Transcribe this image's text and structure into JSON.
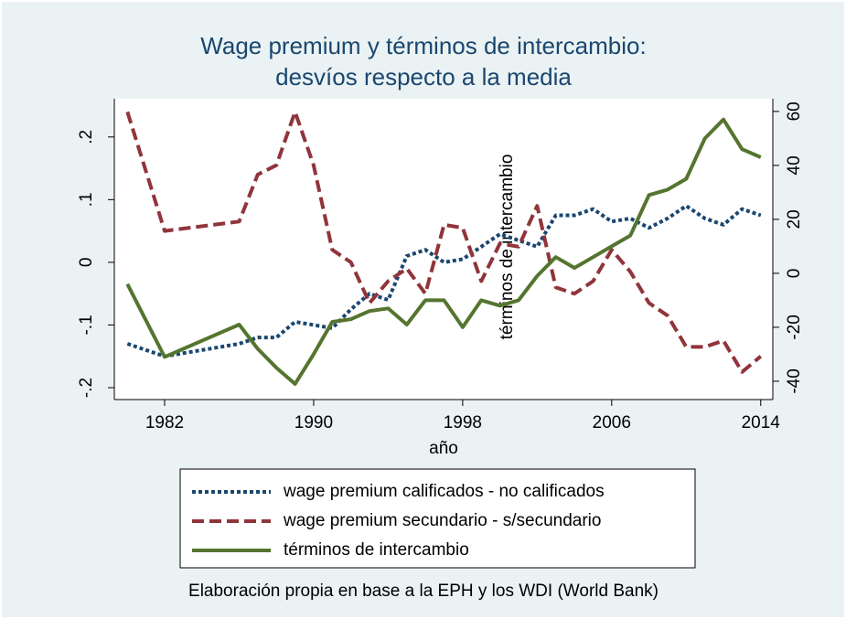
{
  "chart_data": {
    "type": "line",
    "title": [
      "Wage premium y términos de intercambio:",
      "desvíos respecto a la media"
    ],
    "xlabel": "año",
    "y2label": "términos de intercambio",
    "note": "Elaboración propia en base a la EPH y los WDI (World Bank)",
    "x": [
      1980,
      1982,
      1986,
      1987,
      1988,
      1989,
      1990,
      1991,
      1992,
      1993,
      1994,
      1995,
      1996,
      1997,
      1998,
      1999,
      2000,
      2001,
      2002,
      2003,
      2004,
      2005,
      2006,
      2007,
      2008,
      2009,
      2010,
      2011,
      2012,
      2013,
      2014
    ],
    "series": [
      {
        "name": "wage premium calificados - no calificados",
        "color": "#1a476f",
        "style": "dotted",
        "values": [
          -0.13,
          -0.15,
          -0.13,
          -0.12,
          -0.12,
          -0.095,
          -0.1,
          -0.105,
          -0.075,
          -0.05,
          -0.06,
          0.01,
          0.02,
          0.0,
          0.005,
          0.025,
          0.045,
          0.035,
          0.025,
          0.075,
          0.075,
          0.085,
          0.065,
          0.07,
          0.055,
          0.07,
          0.09,
          0.07,
          0.06,
          0.085,
          0.075
        ]
      },
      {
        "name": "wage premium secundario - s/secundario",
        "color": "#90353b",
        "style": "dashed",
        "values": [
          0.24,
          0.05,
          0.065,
          0.14,
          0.155,
          0.24,
          0.155,
          0.02,
          0.0,
          -0.065,
          -0.03,
          -0.01,
          -0.05,
          0.06,
          0.055,
          -0.03,
          0.03,
          0.025,
          0.09,
          -0.04,
          -0.05,
          -0.03,
          0.02,
          -0.015,
          -0.065,
          -0.085,
          -0.135,
          -0.135,
          -0.125,
          -0.175,
          -0.15
        ]
      },
      {
        "name": "términos de intercambio",
        "color": "#55752f",
        "style": "solid",
        "axis": "y2",
        "values": [
          -4,
          -31,
          -19,
          -28,
          -35,
          -41,
          -30,
          -18,
          -17,
          -14,
          -13,
          -19,
          -10,
          -10,
          -20,
          -10,
          -12,
          -10,
          -1,
          6,
          2,
          6,
          10,
          14,
          29,
          31,
          35,
          50,
          57,
          46,
          43
        ]
      }
    ],
    "xlim": [
      1979.3,
      2014.65
    ],
    "xticks": [
      1982,
      1990,
      1998,
      2006,
      2014
    ],
    "ylim": [
      -0.219,
      0.261
    ],
    "yticks": [
      {
        "value": -0.2,
        "label": "-.2"
      },
      {
        "value": -0.1,
        "label": "-.1"
      },
      0,
      {
        "value": 0.1,
        "label": ".1"
      },
      {
        "value": 0.2,
        "label": ".2"
      }
    ],
    "y2lim": [
      -46.8,
      64.7
    ],
    "y2ticks": [
      -40,
      -20,
      0,
      20,
      40,
      60
    ],
    "grid": false,
    "legend": "bottom"
  }
}
